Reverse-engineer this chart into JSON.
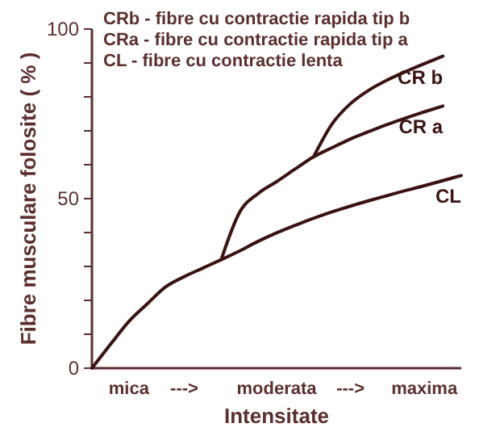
{
  "chart_data": {
    "type": "line",
    "xlabel": "Intensitate",
    "ylabel": "Fibre musculare folosite ( % )",
    "annotations": [
      "CRb - fibre cu contractie rapida tip b",
      "CRa - fibre cu contractie rapida tip a",
      "CL - fibre cu contractie lenta"
    ],
    "categories": [
      null,
      null,
      "mica",
      null,
      null,
      "--->",
      null,
      null,
      null,
      null,
      "moderata",
      null,
      null,
      null,
      "--->",
      null,
      null,
      null,
      "maxima",
      null,
      null
    ],
    "ylim": [
      0,
      100
    ],
    "yticks": [
      0,
      {
        "value": 10,
        "label": null
      },
      {
        "value": 20,
        "label": null
      },
      {
        "value": 30,
        "label": null
      },
      {
        "value": 40,
        "label": null
      },
      50,
      {
        "value": 60,
        "label": null
      },
      {
        "value": 70,
        "label": null
      },
      {
        "value": 80,
        "label": null
      },
      {
        "value": 90,
        "label": null
      },
      100
    ],
    "grid": false,
    "legend": false,
    "marker": "none",
    "line_style": "solid",
    "series": [
      {
        "name": "CR b",
        "color": "#3a1212",
        "values": [
          null,
          null,
          null,
          null,
          null,
          null,
          null,
          null,
          null,
          null,
          null,
          null,
          62.3,
          72,
          78,
          82,
          85,
          87.5,
          89.8,
          92,
          null
        ]
      },
      {
        "name": "CR a",
        "color": "#3a1212",
        "values": [
          null,
          null,
          null,
          null,
          null,
          null,
          null,
          32,
          46,
          51.5,
          55,
          58.7,
          62.3,
          65,
          67.6,
          69.8,
          71.9,
          73.8,
          75.6,
          77.3,
          null
        ]
      },
      {
        "name": "CL",
        "color": "#3a1212",
        "values": [
          0,
          7,
          13.8,
          19,
          24,
          27,
          29.5,
          32,
          34.6,
          37.4,
          39.9,
          42.1,
          44.2,
          46.1,
          47.8,
          49.4,
          50.9,
          52.4,
          53.8,
          55.3,
          56.8
        ]
      }
    ]
  }
}
